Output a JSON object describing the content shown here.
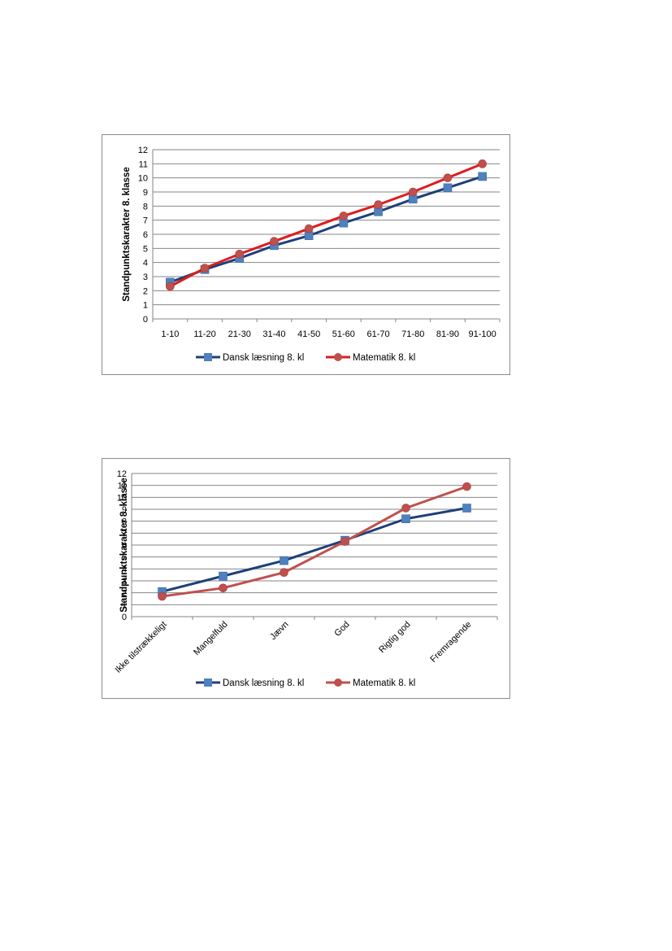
{
  "chart_data": [
    {
      "type": "line",
      "title": "",
      "xlabel": "",
      "ylabel": "Standpunktskarakter 8. klasse",
      "ylim": [
        0,
        12
      ],
      "yticks": [
        0,
        1,
        2,
        3,
        4,
        5,
        6,
        7,
        8,
        9,
        10,
        11,
        12
      ],
      "grid": true,
      "legend": "bottom",
      "categories": [
        "1-10",
        "11-20",
        "21-30",
        "31-40",
        "41-50",
        "51-60",
        "61-70",
        "71-80",
        "81-90",
        "91-100"
      ],
      "series": [
        {
          "name": "Dansk læsning 8. kl",
          "color": "#1f3f7a",
          "marker_color": "#4f81bd",
          "marker": "square",
          "values": [
            2.6,
            3.5,
            4.3,
            5.2,
            5.9,
            6.8,
            7.6,
            8.5,
            9.3,
            10.1
          ]
        },
        {
          "name": "Matematik 8. kl",
          "color": "#e01b1b",
          "marker_color": "#c0504d",
          "marker": "circle",
          "values": [
            2.3,
            3.6,
            4.6,
            5.5,
            6.4,
            7.3,
            8.1,
            9.0,
            10.0,
            11.0
          ]
        }
      ]
    },
    {
      "type": "line",
      "title": "",
      "xlabel": "",
      "ylabel": "Standpunktskarakter 8. klasse",
      "ylim": [
        0,
        12
      ],
      "yticks": [
        0,
        1,
        2,
        3,
        4,
        5,
        6,
        7,
        8,
        9,
        10,
        11,
        12
      ],
      "grid": true,
      "legend": "bottom",
      "categories": [
        "Ikke tilstrækkeligt",
        "Mangelfuld",
        "Jævn",
        "God",
        "Rigtig god",
        "Fremragende"
      ],
      "series": [
        {
          "name": "Dansk læsning 8. kl",
          "color": "#1f3f7a",
          "marker_color": "#4f81bd",
          "marker": "square",
          "values": [
            2.1,
            3.4,
            4.7,
            6.4,
            8.2,
            9.1
          ]
        },
        {
          "name": "Matematik 8. kl",
          "color": "#c0504d",
          "marker_color": "#c0504d",
          "marker": "circle",
          "values": [
            1.7,
            2.4,
            3.7,
            6.3,
            9.1,
            10.9
          ]
        }
      ]
    }
  ]
}
